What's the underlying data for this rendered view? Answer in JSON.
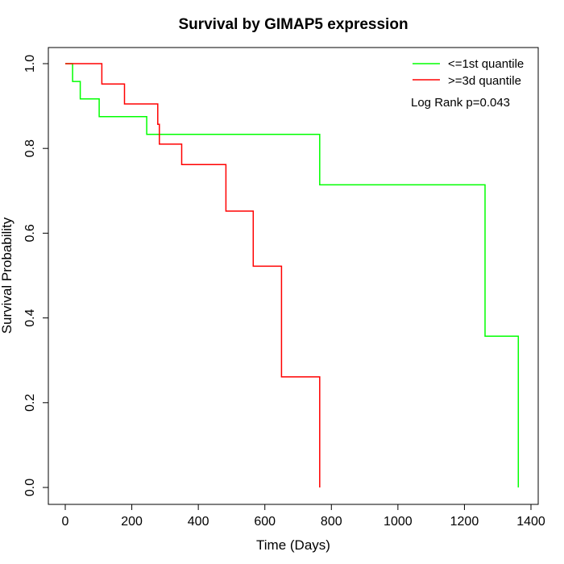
{
  "chart_data": {
    "type": "line",
    "subtype": "kaplan-meier step plot",
    "title": "Survival by GIMAP5 expression",
    "xlabel": "Time (Days)",
    "ylabel": "Survival Probability",
    "xlim": [
      0,
      1400
    ],
    "ylim": [
      0,
      1
    ],
    "x_ticks": [
      0,
      200,
      400,
      600,
      800,
      1000,
      1200,
      1400
    ],
    "x_tick_labels": [
      "0",
      "200",
      "400",
      "600",
      "800",
      "1000",
      "1200",
      "1400"
    ],
    "y_ticks": [
      0,
      0.2,
      0.4,
      0.6,
      0.8,
      1.0
    ],
    "y_tick_labels": [
      "0.0",
      "0.2",
      "0.4",
      "0.6",
      "0.8",
      "1.0"
    ],
    "legend_position": "top-right",
    "annotation": "Log Rank p=0.043",
    "series": [
      {
        "name": "<=1st quantile",
        "color": "#00ff00",
        "points": [
          [
            0,
            1.0
          ],
          [
            22,
            1.0
          ],
          [
            22,
            0.958
          ],
          [
            45,
            0.958
          ],
          [
            45,
            0.917
          ],
          [
            102,
            0.917
          ],
          [
            102,
            0.875
          ],
          [
            245,
            0.875
          ],
          [
            245,
            0.833
          ],
          [
            765,
            0.833
          ],
          [
            765,
            0.714
          ],
          [
            1262,
            0.714
          ],
          [
            1262,
            0.357
          ],
          [
            1362,
            0.357
          ],
          [
            1362,
            0.0
          ]
        ]
      },
      {
        "name": ">=3d quantile",
        "color": "#ff0000",
        "points": [
          [
            0,
            1.0
          ],
          [
            110,
            1.0
          ],
          [
            110,
            0.952
          ],
          [
            178,
            0.952
          ],
          [
            178,
            0.905
          ],
          [
            278,
            0.905
          ],
          [
            278,
            0.857
          ],
          [
            283,
            0.857
          ],
          [
            283,
            0.81
          ],
          [
            350,
            0.81
          ],
          [
            350,
            0.762
          ],
          [
            483,
            0.762
          ],
          [
            483,
            0.652
          ],
          [
            565,
            0.652
          ],
          [
            565,
            0.522
          ],
          [
            650,
            0.522
          ],
          [
            650,
            0.261
          ],
          [
            765,
            0.261
          ],
          [
            765,
            0.0
          ]
        ]
      }
    ]
  }
}
